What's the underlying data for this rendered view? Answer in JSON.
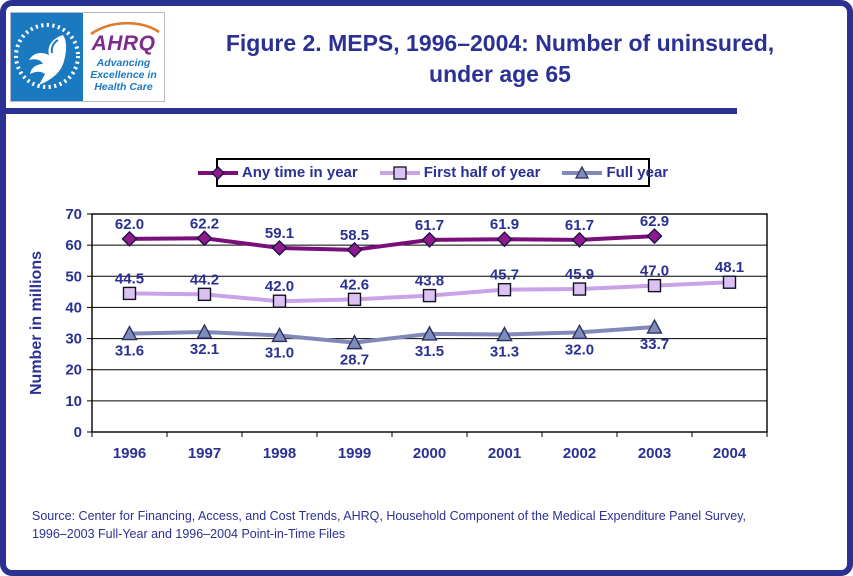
{
  "frame": {
    "border_color": "#2B3193",
    "accent_navy": "#2B3193"
  },
  "header": {
    "logo": {
      "hhs_icon": "hhs-eagle-icon",
      "ahrq_acronym": "AHRQ",
      "tagline_line1": "Advancing",
      "tagline_line2": "Excellence in",
      "tagline_line3": "Health Care"
    },
    "title_line1": "Figure 2. MEPS, 1996–2004: Number of uninsured,",
    "title_line2": "under age 65"
  },
  "chart_data": {
    "type": "line",
    "categories": [
      "1996",
      "1997",
      "1998",
      "1999",
      "2000",
      "2001",
      "2002",
      "2003",
      "2004"
    ],
    "series": [
      {
        "name": "Any time in year",
        "values": [
          62.0,
          62.2,
          59.1,
          58.5,
          61.7,
          61.9,
          61.7,
          62.9,
          null
        ],
        "labels": [
          "62.0",
          "62.2",
          "59.1",
          "58.5",
          "61.7",
          "61.9",
          "61.7",
          "62.9"
        ],
        "color": "#7A0E7A",
        "marker": "diamond",
        "marker_fill": "#8E1A8E",
        "marker_stroke": "#1E1145",
        "label_position": "above"
      },
      {
        "name": "First half of year",
        "values": [
          44.5,
          44.2,
          42.0,
          42.6,
          43.8,
          45.7,
          45.9,
          47.0,
          48.1
        ],
        "labels": [
          "44.5",
          "44.2",
          "42.0",
          "42.6",
          "43.8",
          "45.7",
          "45.9",
          "47.0",
          "48.1"
        ],
        "color": "#C9A2E8",
        "marker": "square",
        "marker_fill": "#DCC2F2",
        "marker_stroke": "#111122",
        "label_position": "above"
      },
      {
        "name": "Full year",
        "values": [
          31.6,
          32.1,
          31.0,
          28.7,
          31.5,
          31.3,
          32.0,
          33.7,
          null
        ],
        "labels": [
          "31.6",
          "32.1",
          "31.0",
          "28.7",
          "31.5",
          "31.3",
          "32.0",
          "33.7"
        ],
        "color": "#8089B8",
        "marker": "triangle",
        "marker_fill": "#7F8BBB",
        "marker_stroke": "#2B3160",
        "label_position": "below"
      }
    ],
    "ylabel": "Number in millions",
    "ylim": [
      0,
      70
    ],
    "ytick_step": 10,
    "grid": true,
    "legend_position": "top",
    "text_color": "#2B3193"
  },
  "source_line1": "Source: Center for Financing, Access, and Cost Trends, AHRQ, Household Component of the Medical Expenditure Panel Survey,",
  "source_line2": "1996–2003 Full-Year and 1996–2004 Point-in-Time Files"
}
